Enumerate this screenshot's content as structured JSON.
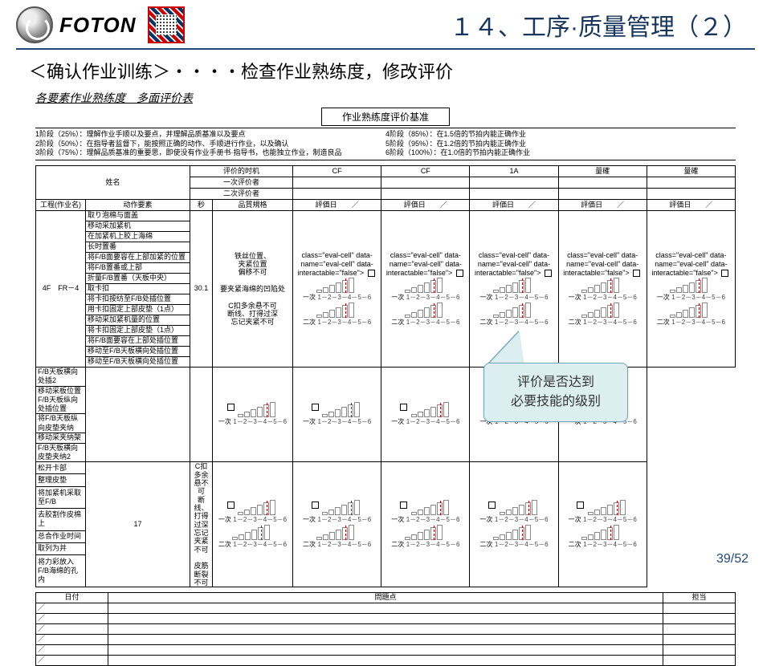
{
  "logo_text": "FOTON",
  "page_title": "１４、工序·质量管理（２）",
  "subtitle": "＜确认作业训练＞・・・・检查作业熟练度，修改评价",
  "sheet_heading": "各要素作业熟练度　多面评价表",
  "criteria_caption": "作业熟练度评价基准",
  "criteria_left": [
    "1阶段（25%）：理解作业手顺以及要点，并理解品质基准以及要点",
    "2阶段（50%）：在指导者监督下，能按照正确的动作、手顺进行作业，以及确认",
    "3阶段（75%）：理解品质基准的重要思，即使没有作业手册书·指导书，也能独立作业，制造良品"
  ],
  "criteria_right": [
    "4阶段（85%）：在1.5倍的节拍内能正确作业",
    "5阶段（95%）：在1.2倍的节拍内能正确作业",
    "6阶段（100%）：在1.0倍的节拍内能正确作业"
  ],
  "hdr": {
    "name": "姓名",
    "timing": "评价的时机",
    "eval1": "一次评价者",
    "eval2": "二次评价者",
    "cols": [
      "CF",
      "CF",
      "1A",
      "量確",
      "量確"
    ]
  },
  "row2": {
    "proc": "工程(作业名)",
    "action": "动作要素",
    "sec": "秒",
    "quality": "品質規格",
    "evaldate": "評価日　　／"
  },
  "proc_name": "4F　FR－4",
  "actions1": [
    "取り泡棉与面盖",
    "移动采加紧机",
    "在加紧机上胶上海绵",
    "长时置番",
    "将F/B面要容在上部加紧的位置",
    "将F/B置番或上部",
    "折量F/B置番（天板中央）",
    "取卡扣",
    "将卡扣按纺至F/B处插位置",
    "用卡扣固定上部皮垫（1点）",
    "移动采加紧机量的位置",
    "将卡扣固定上部皮垫（1点）",
    "将F/B面要容在上部处插位置",
    "移动至F/B天板横向处插位置",
    "移动至F/B天板横向处插位置"
  ],
  "actions2": [
    "F/B天板横向处插2",
    "移动采板位置F/B天板纵向处插位置",
    "将F/B天板纵向皮垫夹纳",
    "移动采夹纳架",
    "F/B天板横向皮垫夹纳2"
  ],
  "actions3": [
    "松开卡部",
    "整理皮垫",
    "将加紧机采取至F/B",
    "去胶割作皮棉上",
    "总合作业时间",
    "取列为并",
    "将力彩放入F/B海绵的孔内"
  ],
  "sec1": "30.1",
  "sec2": "17",
  "quality1": "铁丝位置、\n夹紧位置\n偏移不可\n\n要夹紧海绵的凹陷处\n\nC扣多余悬不可\n断线、打得过深\n忘记夹紧不可",
  "quality2": "C扣多余悬不可\n断线、打得过深\n忘记夹紧不可\n\n皮筋断裂不可",
  "attempt1": "一次",
  "attempt2": "二次",
  "scale": "1－2－3－4－5－6",
  "bottom": {
    "date": "日付",
    "issue": "問題点",
    "owner": "担当"
  },
  "callout_l1": "评价是否达到",
  "callout_l2": "必要技能的级别",
  "pagenum": "39/52"
}
